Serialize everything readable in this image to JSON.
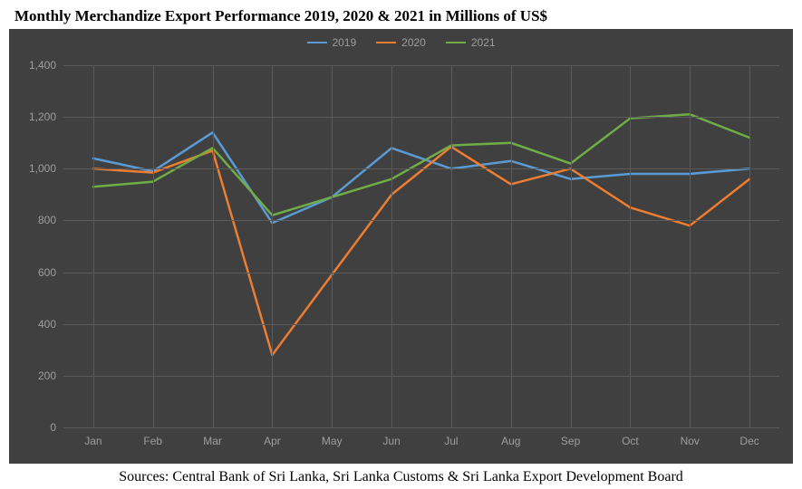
{
  "title": "Monthly Merchandize Export Performance 2019, 2020 & 2021 in Millions of US$",
  "sources": "Sources: Central Bank of Sri Lanka, Sri Lanka Customs & Sri Lanka Export Development Board",
  "chart": {
    "type": "line",
    "background_color": "#404040",
    "grid_color": "#5a5a5a",
    "label_color": "#9e9e9e",
    "label_fontsize": 12,
    "line_width": 2.5,
    "categories": [
      "Jan",
      "Feb",
      "Mar",
      "Apr",
      "May",
      "Jun",
      "Jul",
      "Aug",
      "Sep",
      "Oct",
      "Nov",
      "Dec"
    ],
    "ylim": [
      0,
      1400
    ],
    "ytick_step": 200,
    "yticks": [
      0,
      200,
      400,
      600,
      800,
      1000,
      1200,
      1400
    ],
    "yticklabels": [
      "0",
      "200",
      "400",
      "600",
      "800",
      "1,000",
      "1,200",
      "1,400"
    ],
    "series": [
      {
        "name": "2019",
        "color": "#5b9bd5",
        "values": [
          1040,
          990,
          1140,
          790,
          890,
          1080,
          1000,
          1030,
          960,
          980,
          980,
          1000
        ]
      },
      {
        "name": "2020",
        "color": "#ed7d31",
        "values": [
          1000,
          985,
          1070,
          280,
          590,
          900,
          1085,
          940,
          1000,
          850,
          780,
          960
        ]
      },
      {
        "name": "2021",
        "color": "#70ad47",
        "values": [
          930,
          950,
          1080,
          820,
          890,
          960,
          1090,
          1100,
          1020,
          1195,
          1210,
          1120
        ]
      }
    ]
  }
}
